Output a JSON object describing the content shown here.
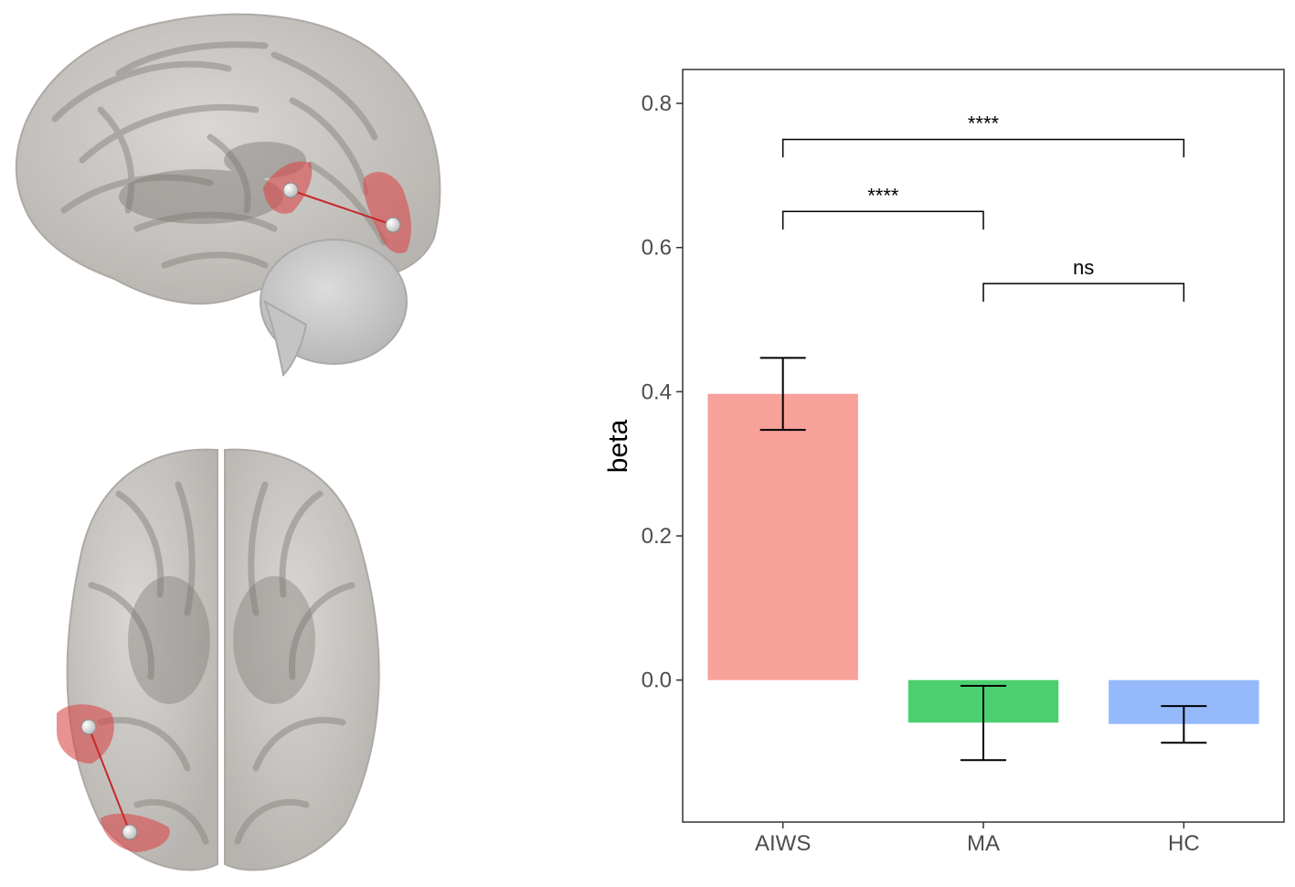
{
  "figure": {
    "brain_views": [
      {
        "name": "sagittal-view",
        "description_icon": "brain-sagittal-icon"
      },
      {
        "name": "axial-view",
        "description_icon": "brain-axial-icon"
      }
    ],
    "highlight_color": "#d94a4a"
  },
  "chart_data": {
    "type": "bar",
    "title": "",
    "xlabel": "",
    "ylabel": "beta",
    "categories": [
      "AIWS",
      "MA",
      "HC"
    ],
    "values": [
      0.397,
      -0.059,
      -0.061
    ],
    "error_low": [
      0.347,
      -0.111,
      -0.087
    ],
    "error_high": [
      0.447,
      -0.008,
      -0.036
    ],
    "colors": [
      "#f8a19a",
      "#4ccf6e",
      "#95bafb"
    ],
    "ylim": [
      -0.197,
      0.847
    ],
    "yticks": [
      0.0,
      0.2,
      0.4,
      0.6,
      0.8
    ],
    "ytick_labels": [
      "0.0",
      "0.2",
      "0.4",
      "0.6",
      "0.8"
    ],
    "grid": false,
    "significance": [
      {
        "from": "AIWS",
        "to": "HC",
        "y": 0.75,
        "tick_bottom": 0.725,
        "label": "****"
      },
      {
        "from": "AIWS",
        "to": "MA",
        "y": 0.65,
        "tick_bottom": 0.625,
        "label": "****"
      },
      {
        "from": "MA",
        "to": "HC",
        "y": 0.55,
        "tick_bottom": 0.525,
        "label": "ns"
      }
    ]
  }
}
